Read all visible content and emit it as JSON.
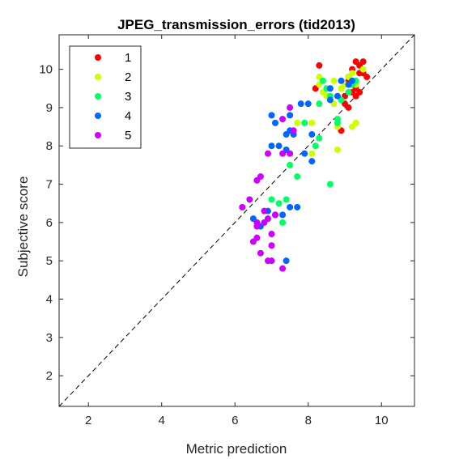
{
  "chart_data": {
    "type": "scatter",
    "title": "JPEG_transmission_errors (tid2013)",
    "xlabel": "Metric prediction",
    "ylabel": "Subjective score",
    "xlim": [
      1.2,
      10.9
    ],
    "ylim": [
      1.2,
      10.9
    ],
    "xticks": [
      2,
      4,
      6,
      8,
      10
    ],
    "yticks": [
      2,
      3,
      4,
      5,
      6,
      7,
      8,
      9,
      10
    ],
    "grid": false,
    "diagonal": "dashed y=x reference line",
    "legend_placement": "top-left",
    "series": [
      {
        "name": "1",
        "color": "#ff0000",
        "points": [
          [
            8.3,
            10.1
          ],
          [
            9.1,
            9.8
          ],
          [
            9.3,
            10.2
          ],
          [
            9.5,
            10.2
          ],
          [
            9.2,
            10.0
          ],
          [
            9.4,
            9.9
          ],
          [
            9.6,
            9.8
          ],
          [
            9.2,
            9.6
          ],
          [
            9.3,
            9.5
          ],
          [
            9.3,
            9.3
          ],
          [
            9.4,
            9.4
          ],
          [
            9.0,
            9.1
          ],
          [
            9.1,
            9.0
          ],
          [
            8.9,
            8.4
          ],
          [
            8.2,
            9.5
          ],
          [
            9.0,
            9.3
          ],
          [
            9.5,
            9.9
          ],
          [
            9.4,
            10.1
          ],
          [
            9.1,
            9.7
          ],
          [
            9.2,
            9.4
          ]
        ]
      },
      {
        "name": "2",
        "color": "#ccff00",
        "points": [
          [
            8.3,
            9.8
          ],
          [
            8.7,
            9.7
          ],
          [
            9.0,
            9.6
          ],
          [
            9.3,
            9.6
          ],
          [
            9.5,
            10.0
          ],
          [
            9.2,
            9.9
          ],
          [
            8.5,
            9.3
          ],
          [
            8.9,
            9.5
          ],
          [
            8.7,
            9.1
          ],
          [
            8.8,
            8.5
          ],
          [
            9.3,
            8.6
          ],
          [
            9.2,
            8.5
          ],
          [
            8.1,
            7.8
          ],
          [
            8.8,
            7.9
          ],
          [
            7.9,
            8.6
          ],
          [
            7.7,
            8.6
          ],
          [
            8.4,
            9.4
          ],
          [
            9.1,
            9.8
          ],
          [
            8.3,
            9.6
          ],
          [
            8.1,
            8.6
          ]
        ]
      },
      {
        "name": "3",
        "color": "#00ff66",
        "points": [
          [
            8.4,
            9.7
          ],
          [
            8.5,
            9.5
          ],
          [
            8.3,
            9.1
          ],
          [
            8.6,
            9.3
          ],
          [
            8.8,
            8.7
          ],
          [
            8.8,
            8.6
          ],
          [
            8.9,
            9.2
          ],
          [
            9.1,
            9.4
          ],
          [
            9.2,
            9.6
          ],
          [
            9.3,
            9.7
          ],
          [
            7.9,
            8.6
          ],
          [
            8.2,
            8.0
          ],
          [
            8.3,
            8.2
          ],
          [
            7.5,
            7.5
          ],
          [
            7.7,
            7.2
          ],
          [
            8.6,
            7.0
          ],
          [
            7.4,
            6.6
          ],
          [
            7.0,
            6.6
          ],
          [
            7.2,
            6.5
          ],
          [
            7.3,
            6.0
          ]
        ]
      },
      {
        "name": "4",
        "color": "#0066ff",
        "points": [
          [
            7.0,
            8.8
          ],
          [
            7.1,
            8.6
          ],
          [
            7.5,
            8.8
          ],
          [
            7.8,
            9.1
          ],
          [
            8.0,
            9.1
          ],
          [
            8.1,
            8.3
          ],
          [
            7.6,
            8.3
          ],
          [
            7.5,
            8.4
          ],
          [
            7.4,
            7.9
          ],
          [
            7.4,
            8.3
          ],
          [
            7.0,
            8.0
          ],
          [
            7.2,
            8.0
          ],
          [
            7.9,
            7.8
          ],
          [
            8.1,
            7.6
          ],
          [
            8.6,
            9.2
          ],
          [
            8.8,
            9.3
          ],
          [
            8.9,
            9.7
          ],
          [
            9.1,
            9.6
          ],
          [
            9.2,
            9.7
          ],
          [
            6.9,
            6.3
          ],
          [
            7.1,
            6.2
          ],
          [
            7.3,
            6.2
          ],
          [
            7.5,
            6.4
          ],
          [
            7.7,
            6.4
          ],
          [
            6.5,
            6.1
          ],
          [
            6.7,
            5.9
          ],
          [
            7.4,
            5.0
          ],
          [
            8.6,
            9.5
          ]
        ]
      },
      {
        "name": "5",
        "color": "#cc00ff",
        "points": [
          [
            7.5,
            9.0
          ],
          [
            7.3,
            8.7
          ],
          [
            7.6,
            8.4
          ],
          [
            7.3,
            7.8
          ],
          [
            7.5,
            7.8
          ],
          [
            6.9,
            7.8
          ],
          [
            6.6,
            7.1
          ],
          [
            6.7,
            7.2
          ],
          [
            6.2,
            6.4
          ],
          [
            6.4,
            6.6
          ],
          [
            6.8,
            6.3
          ],
          [
            6.9,
            6.1
          ],
          [
            7.1,
            6.2
          ],
          [
            6.6,
            5.9
          ],
          [
            6.6,
            5.6
          ],
          [
            6.5,
            5.5
          ],
          [
            7.0,
            5.7
          ],
          [
            7.0,
            5.4
          ],
          [
            6.7,
            5.2
          ],
          [
            6.9,
            5.0
          ],
          [
            7.0,
            5.0
          ],
          [
            7.3,
            4.8
          ],
          [
            6.8,
            6.0
          ],
          [
            6.6,
            6.0
          ]
        ]
      }
    ]
  }
}
